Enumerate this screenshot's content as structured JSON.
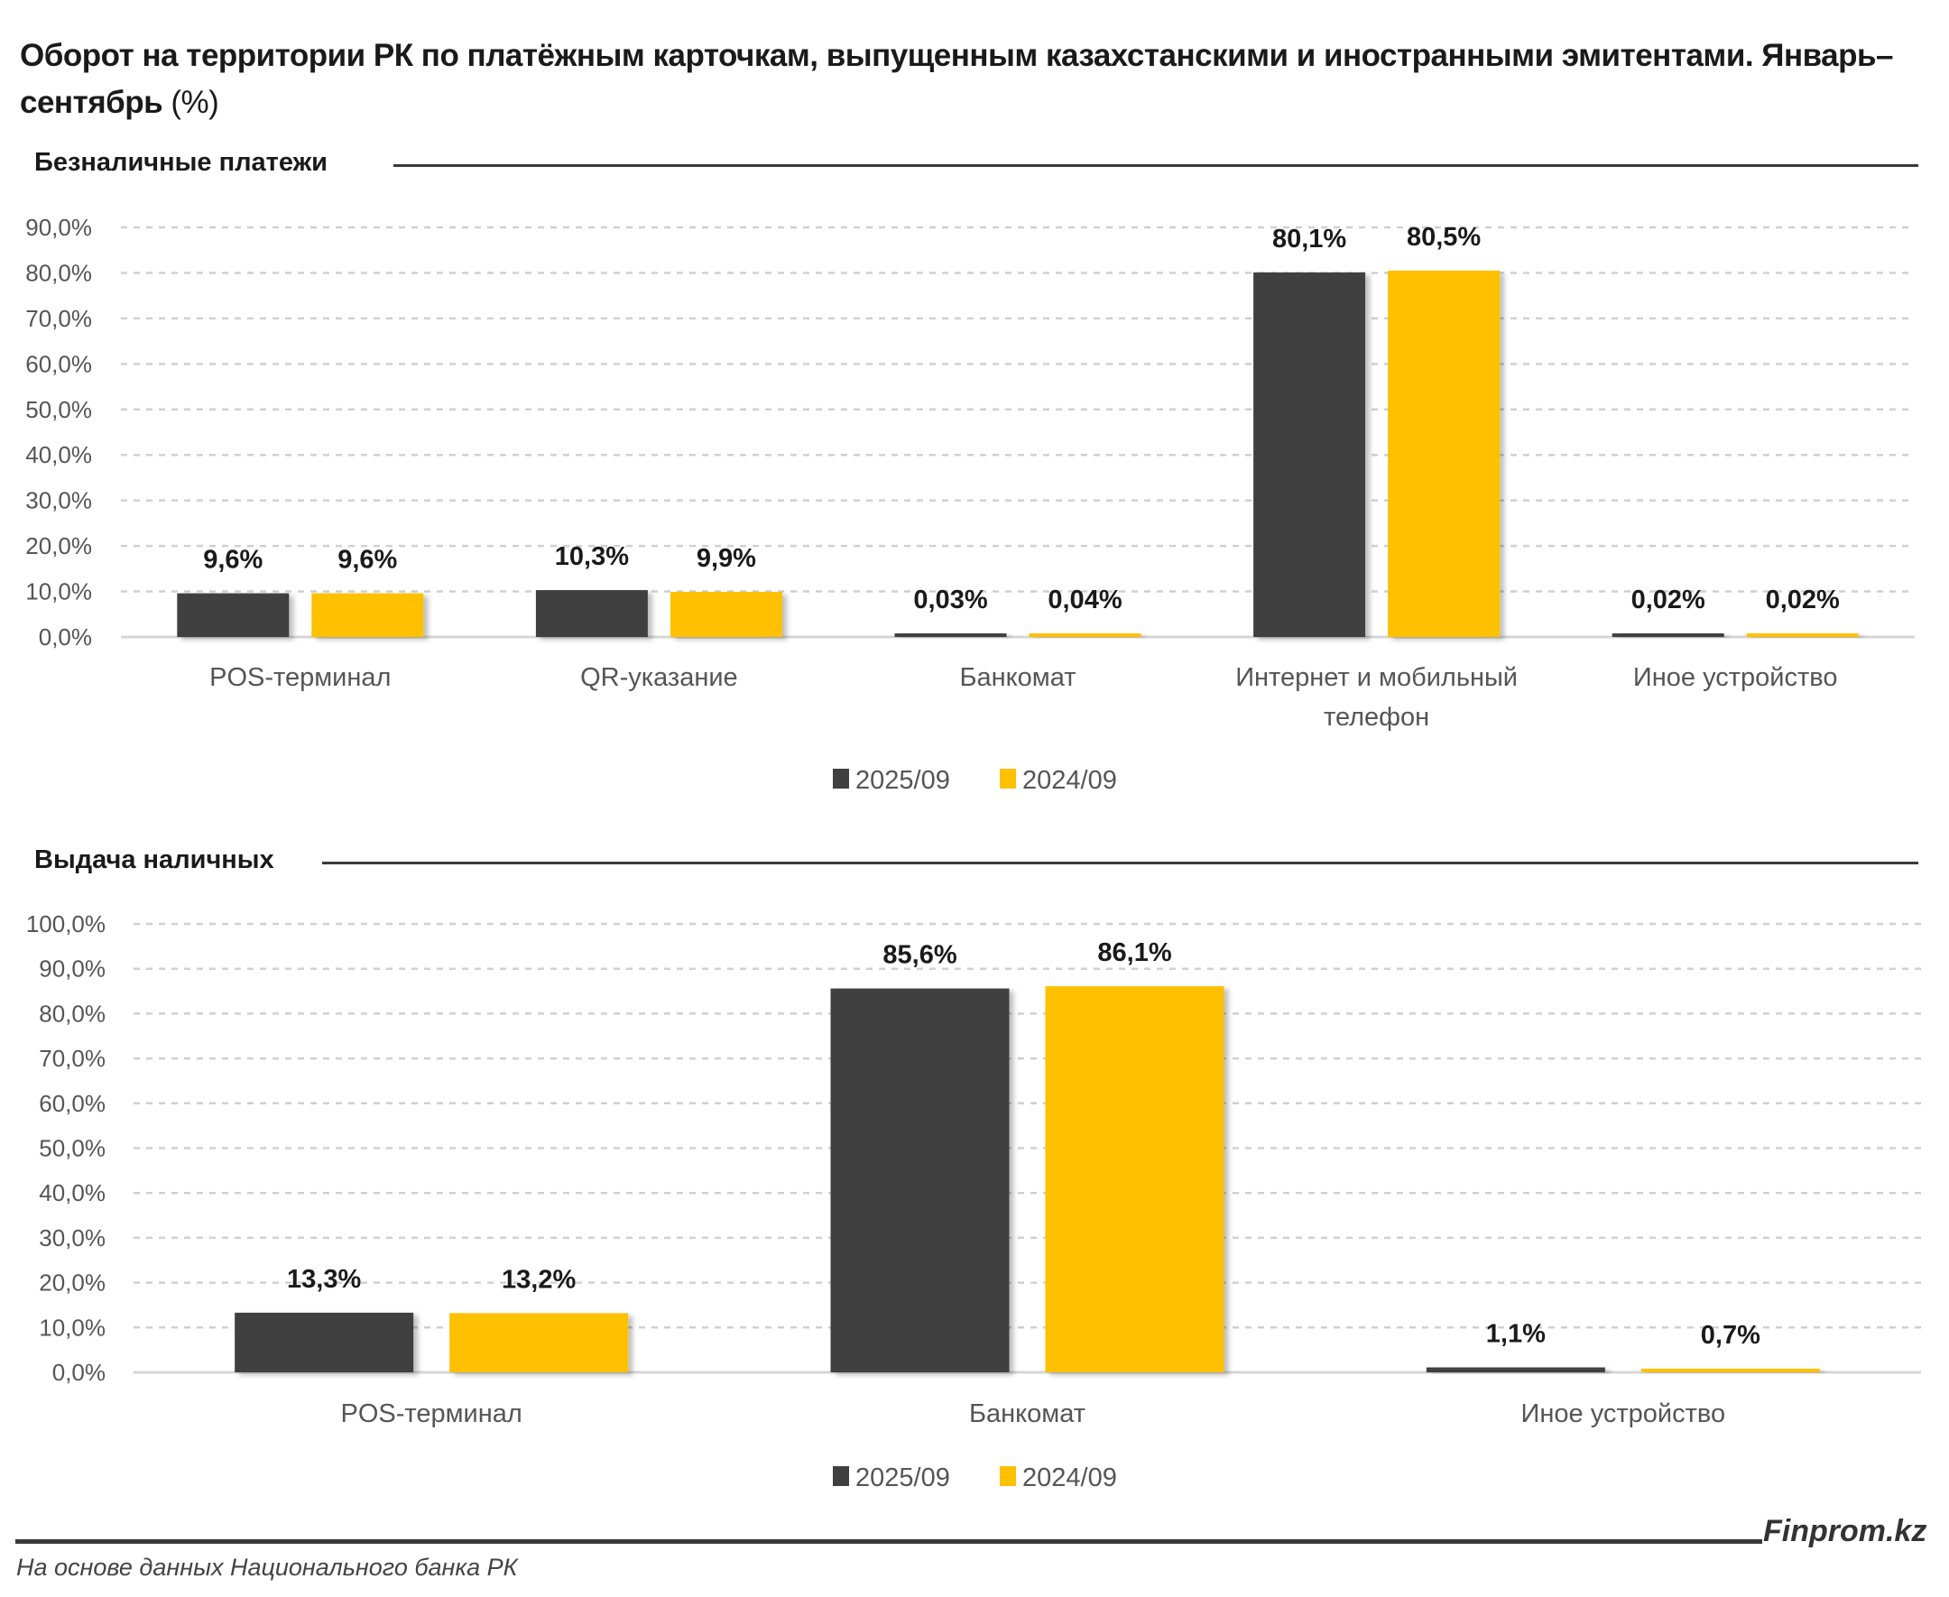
{
  "title": "Оборот на территории РК по платёжным карточкам, выпущенным казахстанскими и иностранными эмитентами. Январь–сентябрь",
  "title_unit": "(%)",
  "colors": {
    "series_2025": "#404040",
    "series_2024": "#FFC000"
  },
  "chart_data": [
    {
      "type": "bar",
      "title": "Безналичные платежи",
      "categories": [
        "POS-терминал",
        "QR-указание",
        "Банкомат",
        "Интернет и мобильный телефон",
        "Иное устройство"
      ],
      "series": [
        {
          "name": "2025/09",
          "values": [
            9.6,
            10.3,
            0.03,
            80.1,
            0.02
          ],
          "labels": [
            "9,6%",
            "10,3%",
            "0,03%",
            "80,1%",
            "0,02%"
          ]
        },
        {
          "name": "2024/09",
          "values": [
            9.6,
            9.9,
            0.04,
            80.5,
            0.02
          ],
          "labels": [
            "9,6%",
            "9,9%",
            "0,04%",
            "80,5%",
            "0,02%"
          ]
        }
      ],
      "ylim": [
        0,
        90
      ],
      "yticks": [
        "0,0%",
        "10,0%",
        "20,0%",
        "30,0%",
        "40,0%",
        "50,0%",
        "60,0%",
        "70,0%",
        "80,0%",
        "90,0%"
      ],
      "grid": true,
      "legend": "bottom"
    },
    {
      "type": "bar",
      "title": "Выдача наличных",
      "categories": [
        "POS-терминал",
        "Банкомат",
        "Иное устройство"
      ],
      "series": [
        {
          "name": "2025/09",
          "values": [
            13.3,
            85.6,
            1.1
          ],
          "labels": [
            "13,3%",
            "85,6%",
            "1,1%"
          ]
        },
        {
          "name": "2024/09",
          "values": [
            13.2,
            86.1,
            0.7
          ],
          "labels": [
            "13,2%",
            "86,1%",
            "0,7%"
          ]
        }
      ],
      "ylim": [
        0,
        100
      ],
      "yticks": [
        "0,0%",
        "10,0%",
        "20,0%",
        "30,0%",
        "40,0%",
        "50,0%",
        "60,0%",
        "70,0%",
        "80,0%",
        "90,0%",
        "100,0%"
      ],
      "grid": true,
      "legend": "bottom"
    }
  ],
  "footer": {
    "brand": "Finprom.kz",
    "source": "На основе данных Национального банка РК"
  }
}
